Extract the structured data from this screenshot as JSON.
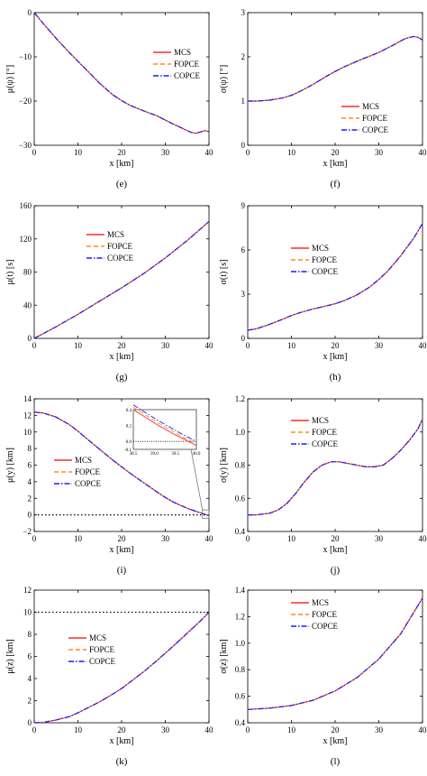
{
  "colors": {
    "mcs": "#ff2a2a",
    "fopce": "#ff8c1a",
    "copce": "#1a1aff",
    "axis": "#000000",
    "reference_line": "#000000"
  },
  "legend_labels": [
    "MCS",
    "FOPCE",
    "COPCE"
  ],
  "chart_data": [
    {
      "id": "e",
      "panel_label": "(e)",
      "type": "line",
      "xlabel": "x [km]",
      "ylabel": "μ(ψ) [°]",
      "xlim": [
        0,
        40
      ],
      "ylim": [
        -30,
        0
      ],
      "xticks": [
        0,
        10,
        20,
        30,
        40
      ],
      "yticks": [
        -30,
        -20,
        -10,
        0
      ],
      "legend_position": "top-center",
      "grid": false,
      "x": [
        0,
        2,
        5,
        8,
        10,
        12,
        15,
        18,
        20,
        22,
        25,
        28,
        30,
        32,
        34,
        35,
        36,
        37,
        38,
        39,
        40
      ],
      "series": [
        {
          "name": "MCS",
          "values": [
            0,
            -2.4,
            -5.8,
            -9.0,
            -11.0,
            -13.0,
            -16.0,
            -18.6,
            -19.9,
            -21.0,
            -22.2,
            -23.3,
            -24.3,
            -25.3,
            -26.2,
            -26.7,
            -27.1,
            -27.3,
            -27.0,
            -26.7,
            -26.9
          ]
        },
        {
          "name": "FOPCE",
          "values": [
            0,
            -2.4,
            -5.8,
            -9.0,
            -11.0,
            -13.0,
            -16.0,
            -18.6,
            -19.9,
            -21.0,
            -22.2,
            -23.3,
            -24.3,
            -25.3,
            -26.2,
            -26.7,
            -27.1,
            -27.3,
            -27.0,
            -26.7,
            -26.9
          ]
        },
        {
          "name": "COPCE",
          "values": [
            0,
            -2.4,
            -5.8,
            -9.0,
            -11.0,
            -13.0,
            -16.0,
            -18.6,
            -19.9,
            -21.0,
            -22.2,
            -23.3,
            -24.3,
            -25.3,
            -26.2,
            -26.7,
            -27.1,
            -27.3,
            -27.0,
            -26.7,
            -26.9
          ]
        }
      ]
    },
    {
      "id": "f",
      "panel_label": "(f)",
      "type": "line",
      "xlabel": "x [km]",
      "ylabel": "σ(ψ) [°]",
      "xlim": [
        0,
        40
      ],
      "ylim": [
        0,
        3
      ],
      "xticks": [
        0,
        10,
        20,
        30,
        40
      ],
      "yticks": [
        0,
        1,
        2,
        3
      ],
      "legend_position": "center-right",
      "grid": false,
      "x": [
        0,
        2,
        5,
        8,
        10,
        12,
        15,
        18,
        20,
        22,
        25,
        28,
        30,
        32,
        34,
        35,
        36,
        37,
        38,
        39,
        40
      ],
      "series": [
        {
          "name": "MCS",
          "values": [
            1.0,
            1.0,
            1.02,
            1.07,
            1.13,
            1.22,
            1.38,
            1.56,
            1.67,
            1.77,
            1.9,
            2.02,
            2.1,
            2.2,
            2.3,
            2.36,
            2.41,
            2.44,
            2.46,
            2.44,
            2.38
          ]
        },
        {
          "name": "FOPCE",
          "values": [
            1.0,
            1.0,
            1.02,
            1.07,
            1.13,
            1.22,
            1.38,
            1.56,
            1.67,
            1.77,
            1.9,
            2.02,
            2.1,
            2.2,
            2.3,
            2.36,
            2.41,
            2.44,
            2.46,
            2.44,
            2.38
          ]
        },
        {
          "name": "COPCE",
          "values": [
            1.0,
            1.0,
            1.02,
            1.07,
            1.13,
            1.22,
            1.38,
            1.56,
            1.67,
            1.77,
            1.9,
            2.02,
            2.1,
            2.2,
            2.3,
            2.36,
            2.41,
            2.44,
            2.46,
            2.44,
            2.38
          ]
        }
      ]
    },
    {
      "id": "g",
      "panel_label": "(g)",
      "type": "line",
      "xlabel": "x [km]",
      "ylabel": "μ(t) [s]",
      "xlim": [
        0,
        40
      ],
      "ylim": [
        0,
        160
      ],
      "xticks": [
        0,
        10,
        20,
        30,
        40
      ],
      "yticks": [
        0,
        40,
        80,
        120,
        160
      ],
      "legend_position": "top-left",
      "grid": false,
      "x": [
        0,
        5,
        10,
        15,
        20,
        25,
        30,
        35,
        40
      ],
      "series": [
        {
          "name": "MCS",
          "values": [
            0,
            14,
            29,
            45,
            61,
            78,
            97,
            118,
            141
          ]
        },
        {
          "name": "FOPCE",
          "values": [
            0,
            14,
            29,
            45,
            61,
            78,
            97,
            118,
            141
          ]
        },
        {
          "name": "COPCE",
          "values": [
            0,
            14,
            29,
            45,
            61,
            78,
            97,
            118,
            141
          ]
        }
      ]
    },
    {
      "id": "h",
      "panel_label": "(h)",
      "type": "line",
      "xlabel": "x [km]",
      "ylabel": "σ(t) [s]",
      "xlim": [
        0,
        40
      ],
      "ylim": [
        0,
        9
      ],
      "xticks": [
        0,
        10,
        20,
        30,
        40
      ],
      "yticks": [
        0,
        3,
        6,
        9
      ],
      "legend_position": "top-left",
      "grid": false,
      "x": [
        0,
        2,
        5,
        8,
        10,
        12,
        15,
        18,
        20,
        22,
        25,
        28,
        30,
        32,
        35,
        38,
        40
      ],
      "series": [
        {
          "name": "MCS",
          "values": [
            0.55,
            0.65,
            0.95,
            1.3,
            1.55,
            1.75,
            2.0,
            2.2,
            2.35,
            2.55,
            2.95,
            3.5,
            4.0,
            4.55,
            5.6,
            6.8,
            7.8
          ]
        },
        {
          "name": "FOPCE",
          "values": [
            0.55,
            0.65,
            0.95,
            1.3,
            1.55,
            1.75,
            2.0,
            2.2,
            2.35,
            2.55,
            2.95,
            3.5,
            4.0,
            4.55,
            5.6,
            6.8,
            7.8
          ]
        },
        {
          "name": "COPCE",
          "values": [
            0.55,
            0.65,
            0.95,
            1.3,
            1.55,
            1.75,
            2.0,
            2.2,
            2.35,
            2.55,
            2.95,
            3.5,
            4.0,
            4.55,
            5.6,
            6.8,
            7.8
          ]
        }
      ]
    },
    {
      "id": "i",
      "panel_label": "(i)",
      "type": "line",
      "xlabel": "x [km]",
      "ylabel": "μ(y) [km]",
      "xlim": [
        0,
        40
      ],
      "ylim": [
        -2,
        14
      ],
      "xticks": [
        0,
        10,
        20,
        30,
        40
      ],
      "yticks": [
        -2,
        0,
        2,
        4,
        6,
        8,
        10,
        12,
        14
      ],
      "legend_position": "center-left",
      "grid": false,
      "reference_line_y": 0,
      "x": [
        0,
        2,
        5,
        8,
        10,
        12,
        15,
        18,
        20,
        22,
        25,
        28,
        30,
        32,
        35,
        38,
        40
      ],
      "series": [
        {
          "name": "MCS",
          "values": [
            12.4,
            12.3,
            11.8,
            10.9,
            10.1,
            9.2,
            7.9,
            6.6,
            5.8,
            5.0,
            3.9,
            2.8,
            2.1,
            1.5,
            0.8,
            0.25,
            -0.1
          ]
        },
        {
          "name": "FOPCE",
          "values": [
            12.4,
            12.3,
            11.8,
            10.9,
            10.1,
            9.2,
            7.9,
            6.6,
            5.8,
            5.0,
            3.9,
            2.8,
            2.1,
            1.5,
            0.8,
            0.25,
            -0.1
          ]
        },
        {
          "name": "COPCE",
          "values": [
            12.4,
            12.3,
            11.8,
            10.9,
            10.1,
            9.2,
            7.9,
            6.6,
            5.8,
            5.0,
            3.9,
            2.8,
            2.1,
            1.5,
            0.8,
            0.25,
            -0.1
          ]
        }
      ],
      "inset": {
        "xlim": [
          38.5,
          40.0
        ],
        "ylim": [
          -0.1,
          0.4
        ],
        "xticks": [
          "38.5",
          "39.0",
          "39.5",
          "40.0"
        ],
        "yticks": [
          "-0.1",
          "0.0",
          "0.2",
          "0.4"
        ],
        "x": [
          38.5,
          38.8,
          39.1,
          39.4,
          39.7,
          40.0
        ],
        "series": [
          {
            "name": "MCS",
            "values": [
              0.4,
              0.3,
              0.2,
              0.11,
              0.03,
              -0.05
            ]
          },
          {
            "name": "FOPCE",
            "values": [
              0.43,
              0.33,
              0.23,
              0.14,
              0.05,
              -0.03
            ]
          },
          {
            "name": "COPCE",
            "values": [
              0.46,
              0.36,
              0.26,
              0.17,
              0.08,
              0.0
            ]
          }
        ]
      }
    },
    {
      "id": "j",
      "panel_label": "(j)",
      "type": "line",
      "xlabel": "x [km]",
      "ylabel": "σ(y) [km]",
      "xlim": [
        0,
        40
      ],
      "ylim": [
        0.4,
        1.2
      ],
      "xticks": [
        0,
        10,
        20,
        30,
        40
      ],
      "yticks": [
        0.4,
        0.6,
        0.8,
        1.0,
        1.2
      ],
      "legend_position": "top-left",
      "grid": false,
      "x": [
        0,
        2,
        5,
        7,
        9,
        11,
        13,
        15,
        17,
        19,
        21,
        23,
        25,
        27,
        29,
        31,
        33,
        35,
        37,
        39,
        40
      ],
      "series": [
        {
          "name": "MCS",
          "values": [
            0.5,
            0.5,
            0.51,
            0.53,
            0.57,
            0.63,
            0.7,
            0.76,
            0.8,
            0.82,
            0.82,
            0.81,
            0.8,
            0.79,
            0.79,
            0.8,
            0.84,
            0.89,
            0.95,
            1.02,
            1.08
          ]
        },
        {
          "name": "FOPCE",
          "values": [
            0.5,
            0.5,
            0.51,
            0.53,
            0.57,
            0.63,
            0.7,
            0.76,
            0.8,
            0.82,
            0.82,
            0.81,
            0.8,
            0.79,
            0.79,
            0.8,
            0.84,
            0.89,
            0.95,
            1.02,
            1.08
          ]
        },
        {
          "name": "COPCE",
          "values": [
            0.5,
            0.5,
            0.51,
            0.53,
            0.57,
            0.63,
            0.7,
            0.76,
            0.8,
            0.82,
            0.82,
            0.81,
            0.8,
            0.79,
            0.79,
            0.8,
            0.84,
            0.89,
            0.95,
            1.02,
            1.08
          ]
        }
      ]
    },
    {
      "id": "k",
      "panel_label": "(k)",
      "type": "line",
      "xlabel": "x [km]",
      "ylabel": "μ(z) [km]",
      "xlim": [
        0,
        40
      ],
      "ylim": [
        0,
        12
      ],
      "xticks": [
        0,
        10,
        20,
        30,
        40
      ],
      "yticks": [
        0,
        2,
        4,
        6,
        8,
        10,
        12
      ],
      "legend_position": "center-left",
      "grid": false,
      "reference_line_y": 10,
      "x": [
        0,
        2,
        5,
        8,
        10,
        12,
        15,
        18,
        20,
        22,
        25,
        28,
        30,
        32,
        35,
        38,
        40
      ],
      "series": [
        {
          "name": "MCS",
          "values": [
            0,
            0.03,
            0.25,
            0.55,
            0.9,
            1.3,
            1.9,
            2.6,
            3.1,
            3.7,
            4.6,
            5.6,
            6.3,
            7.0,
            8.1,
            9.2,
            10.0
          ]
        },
        {
          "name": "FOPCE",
          "values": [
            0,
            0.03,
            0.25,
            0.55,
            0.9,
            1.3,
            1.9,
            2.6,
            3.1,
            3.7,
            4.6,
            5.6,
            6.3,
            7.0,
            8.1,
            9.2,
            10.0
          ]
        },
        {
          "name": "COPCE",
          "values": [
            0,
            0.03,
            0.25,
            0.55,
            0.9,
            1.3,
            1.9,
            2.6,
            3.1,
            3.7,
            4.6,
            5.6,
            6.3,
            7.0,
            8.1,
            9.2,
            10.0
          ]
        }
      ]
    },
    {
      "id": "l",
      "panel_label": "(l)",
      "type": "line",
      "xlabel": "x [km]",
      "ylabel": "σ(z) [km]",
      "xlim": [
        0,
        40
      ],
      "ylim": [
        0.4,
        1.4
      ],
      "xticks": [
        0,
        10,
        20,
        30,
        40
      ],
      "yticks": [
        0.4,
        0.6,
        0.8,
        1.0,
        1.2,
        1.4
      ],
      "legend_position": "top-left",
      "grid": false,
      "x": [
        0,
        5,
        10,
        15,
        20,
        25,
        30,
        35,
        40
      ],
      "series": [
        {
          "name": "MCS",
          "values": [
            0.5,
            0.51,
            0.53,
            0.57,
            0.64,
            0.74,
            0.88,
            1.07,
            1.34
          ]
        },
        {
          "name": "FOPCE",
          "values": [
            0.5,
            0.51,
            0.53,
            0.57,
            0.64,
            0.74,
            0.88,
            1.07,
            1.34
          ]
        },
        {
          "name": "COPCE",
          "values": [
            0.5,
            0.51,
            0.53,
            0.57,
            0.64,
            0.74,
            0.88,
            1.07,
            1.34
          ]
        }
      ]
    }
  ]
}
